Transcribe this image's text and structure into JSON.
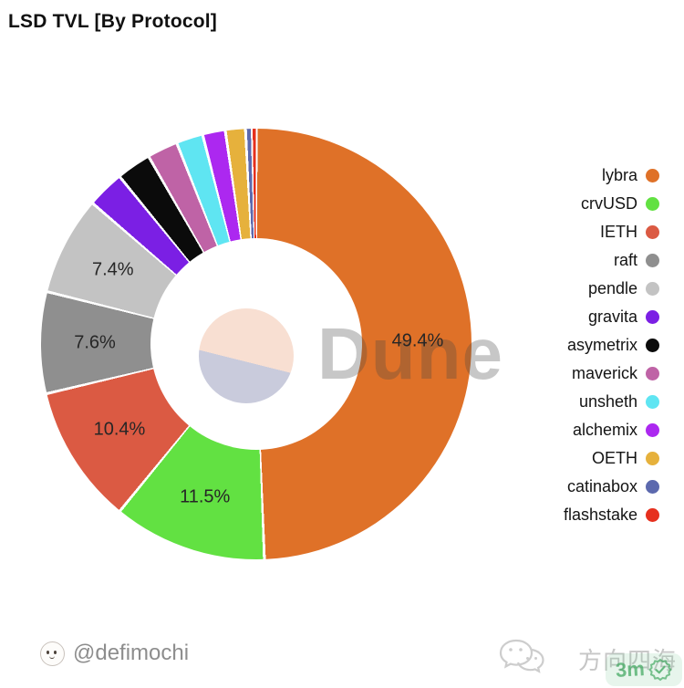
{
  "title": "LSD TVL [By Protocol]",
  "watermark": {
    "brand": "Dune"
  },
  "chart_data": {
    "type": "pie",
    "donut": true,
    "title": "LSD TVL [By Protocol]",
    "unit": "%",
    "legend_position": "right",
    "start_angle_deg": 0,
    "direction": "clockwise",
    "segments": [
      {
        "label": "lybra",
        "value": 49.4,
        "color": "#df7128",
        "display_label": "49.4%"
      },
      {
        "label": "crvUSD",
        "value": 11.5,
        "color": "#62e142",
        "display_label": "11.5%"
      },
      {
        "label": "IETH",
        "value": 10.4,
        "color": "#db5a43",
        "display_label": "10.4%"
      },
      {
        "label": "raft",
        "value": 7.6,
        "color": "#8f8f8f",
        "display_label": "7.6%"
      },
      {
        "label": "pendle",
        "value": 7.4,
        "color": "#c3c3c3",
        "display_label": "7.4%"
      },
      {
        "label": "gravita",
        "value": 2.8,
        "color": "#7b1fe4",
        "display_label": ""
      },
      {
        "label": "asymetrix",
        "value": 2.6,
        "color": "#0b0b0b",
        "display_label": ""
      },
      {
        "label": "maverick",
        "value": 2.3,
        "color": "#bf63a6",
        "display_label": ""
      },
      {
        "label": "unsheth",
        "value": 2.0,
        "color": "#5fe5f2",
        "display_label": ""
      },
      {
        "label": "alchemix",
        "value": 1.7,
        "color": "#ac28f0",
        "display_label": ""
      },
      {
        "label": "OETH",
        "value": 1.5,
        "color": "#e6b13c",
        "display_label": ""
      },
      {
        "label": "catinabox",
        "value": 0.5,
        "color": "#5c69ae",
        "display_label": ""
      },
      {
        "label": "flashstake",
        "value": 0.3,
        "color": "#e6301e",
        "display_label": ""
      }
    ]
  },
  "colors": {
    "slice_divider": "#ffffff",
    "badge_green": "#46aa64",
    "watermark_gray": "#c6c6c6"
  },
  "footer": {
    "author_handle": "@defimochi",
    "cn_watermark": "方向四海",
    "badge_text": "3m"
  }
}
